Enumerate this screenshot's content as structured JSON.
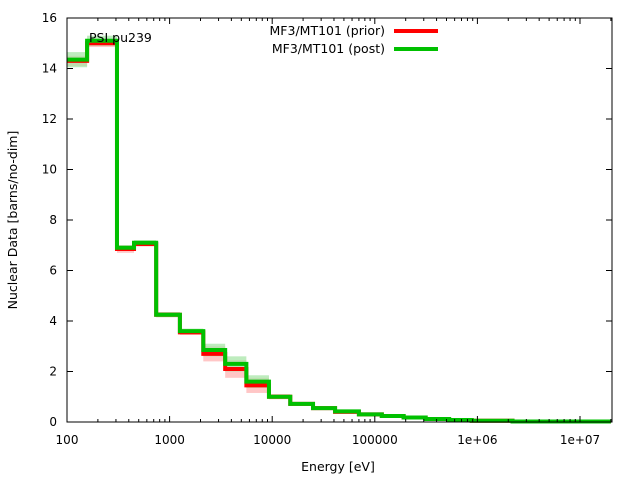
{
  "chart_data": {
    "type": "line",
    "style": "step",
    "title": "PSI pu239",
    "xlabel": "Energy [eV]",
    "ylabel": "Nuclear Data [barns/no-dim]",
    "xscale": "log",
    "xlim": [
      100,
      20000000
    ],
    "ylim": [
      0,
      16
    ],
    "grid": false,
    "legend_position": "top-center",
    "x_ticks": [
      {
        "value": 100,
        "label": "100"
      },
      {
        "value": 1000,
        "label": "1000"
      },
      {
        "value": 10000,
        "label": "10000"
      },
      {
        "value": 100000,
        "label": "100000"
      },
      {
        "value": 1000000,
        "label": "1e+06"
      },
      {
        "value": 10000000,
        "label": "1e+07"
      }
    ],
    "y_ticks": [
      {
        "value": 0,
        "label": "0"
      },
      {
        "value": 2,
        "label": "2"
      },
      {
        "value": 4,
        "label": "4"
      },
      {
        "value": 6,
        "label": "6"
      },
      {
        "value": 8,
        "label": "8"
      },
      {
        "value": 10,
        "label": "10"
      },
      {
        "value": 12,
        "label": "12"
      },
      {
        "value": 14,
        "label": "14"
      },
      {
        "value": 16,
        "label": "16"
      }
    ],
    "bin_edges": [
      100,
      157,
      307,
      450,
      740,
      1260,
      2130,
      3480,
      5600,
      9300,
      15000,
      25000,
      41000,
      70000,
      117000,
      191000,
      313000,
      530000,
      880000,
      2200000,
      20000000
    ],
    "series": [
      {
        "name": "MF3/MT101 (prior)",
        "color": "#ff0000",
        "band_color": "#ffb3b3",
        "values": [
          14.3,
          15.0,
          6.85,
          7.05,
          4.25,
          3.55,
          2.7,
          2.1,
          1.45,
          1.0,
          0.72,
          0.55,
          0.4,
          0.3,
          0.24,
          0.18,
          0.12,
          0.08,
          0.05,
          0.02
        ],
        "uncertainty": [
          0.2,
          0.15,
          0.15,
          0.1,
          0.1,
          0.1,
          0.3,
          0.35,
          0.3,
          0.1,
          0.05,
          0.05,
          0.03,
          0.02,
          0.02,
          0.02,
          0.01,
          0.01,
          0.01,
          0.01
        ]
      },
      {
        "name": "MF3/MT101 (post)",
        "color": "#00c000",
        "band_color": "#a8e6a8",
        "values": [
          14.35,
          15.1,
          6.9,
          7.1,
          4.25,
          3.6,
          2.85,
          2.3,
          1.6,
          1.0,
          0.72,
          0.55,
          0.42,
          0.3,
          0.24,
          0.18,
          0.12,
          0.08,
          0.05,
          0.02
        ],
        "uncertainty": [
          0.3,
          0.2,
          0.1,
          0.1,
          0.1,
          0.1,
          0.25,
          0.3,
          0.25,
          0.08,
          0.05,
          0.04,
          0.03,
          0.02,
          0.02,
          0.02,
          0.01,
          0.01,
          0.01,
          0.01
        ]
      }
    ]
  }
}
